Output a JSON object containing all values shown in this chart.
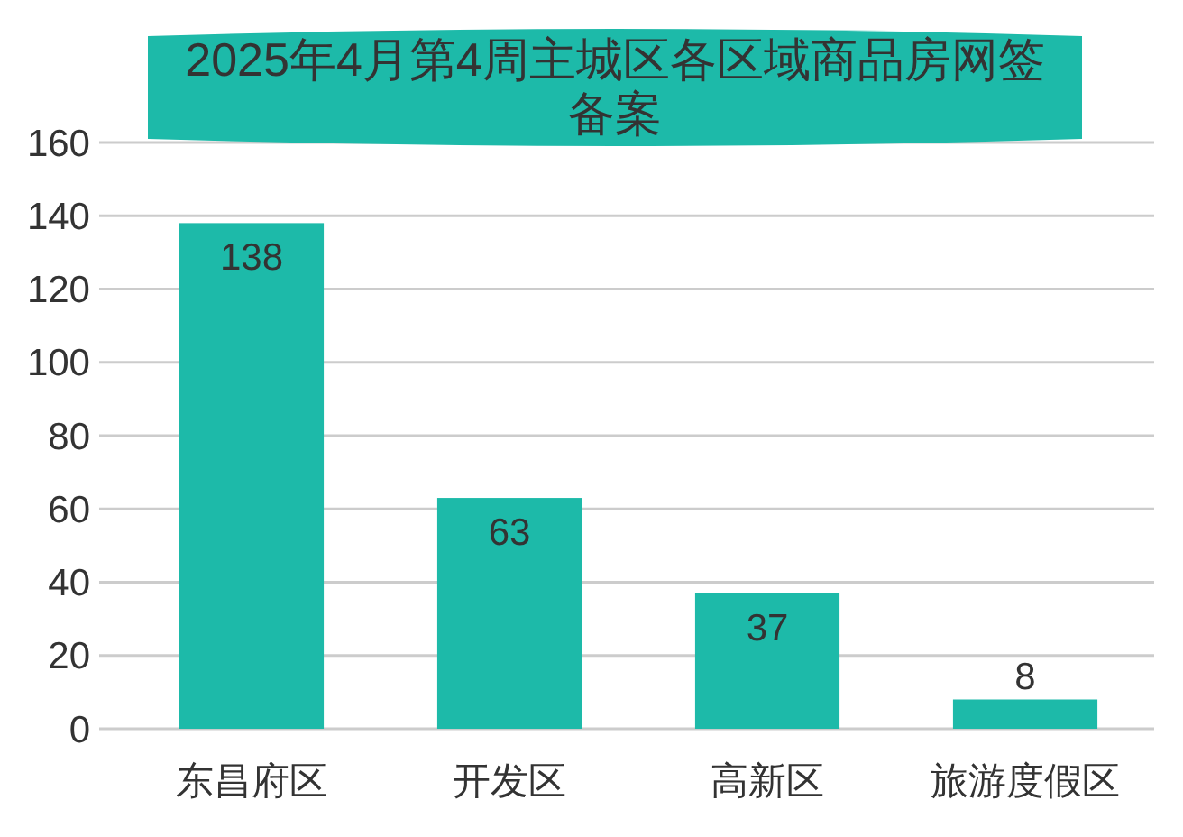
{
  "chart_data": {
    "type": "bar",
    "title": "2025年4月第4周主城区各区域商品房网签备案",
    "categories": [
      "东昌府区",
      "开发区",
      "高新区",
      "旅游度假区"
    ],
    "values": [
      138,
      63,
      37,
      8
    ],
    "color": "#1dbaa9",
    "ylim": [
      0,
      160
    ],
    "yticks": [
      0,
      20,
      40,
      60,
      80,
      100,
      120,
      140,
      160
    ],
    "grid": "y",
    "data_labels": true
  }
}
